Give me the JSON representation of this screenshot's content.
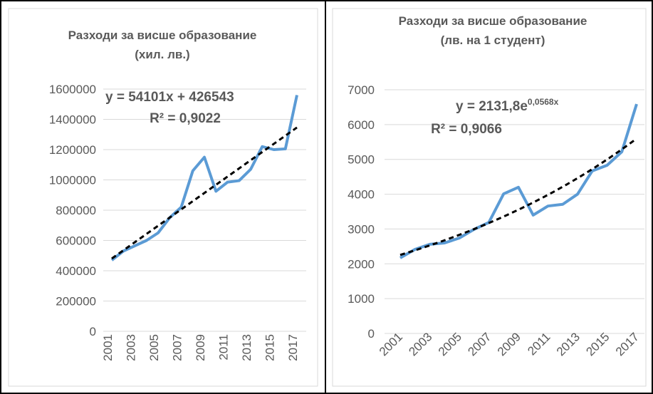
{
  "chart_data": [
    {
      "type": "line",
      "title": "Разходи за висше образование",
      "subtitle": "(хил. лв.)",
      "categories": [
        "2001",
        null,
        "2003",
        null,
        "2005",
        null,
        "2007",
        null,
        "2009",
        null,
        "2011",
        null,
        "2013",
        null,
        "2015",
        null,
        "2017"
      ],
      "series": [
        {
          "color": "#5b9bd5",
          "values": [
            470000,
            530000,
            565000,
            600000,
            650000,
            750000,
            820000,
            1060000,
            1150000,
            925000,
            985000,
            995000,
            1070000,
            1220000,
            1200000,
            1205000,
            1560000
          ]
        }
      ],
      "trendline": {
        "type": "linear",
        "slope": 54101,
        "intercept": 426543,
        "equation": "y = 54101x + 426543",
        "r2_label": "R² = 0,9022"
      },
      "ylim": [
        0,
        1600000
      ],
      "yticks": [
        0,
        200000,
        400000,
        600000,
        800000,
        1000000,
        1200000,
        1400000,
        1600000
      ],
      "grid": true
    },
    {
      "type": "line",
      "title": "Разходи за висше образование",
      "subtitle": "(лв. на 1 студент)",
      "categories": [
        "2001",
        null,
        "2003",
        null,
        "2005",
        null,
        "2007",
        null,
        "2009",
        null,
        "2011",
        null,
        "2013",
        null,
        "2015",
        null,
        "2017"
      ],
      "series": [
        {
          "color": "#5b9bd5",
          "values": [
            2170,
            2415,
            2560,
            2600,
            2740,
            2990,
            3190,
            4010,
            4200,
            3400,
            3660,
            3710,
            4000,
            4670,
            4830,
            5220,
            6590
          ]
        }
      ],
      "trendline": {
        "type": "exponential",
        "a": 2131.8,
        "b": 0.0568,
        "equation": "y = 2131,8e",
        "equation_exponent": "0,0568x",
        "r2_label": "R² = 0,9066"
      },
      "ylim": [
        0,
        7000
      ],
      "yticks": [
        0,
        1000,
        2000,
        3000,
        4000,
        5000,
        6000,
        7000
      ],
      "grid": true
    }
  ]
}
